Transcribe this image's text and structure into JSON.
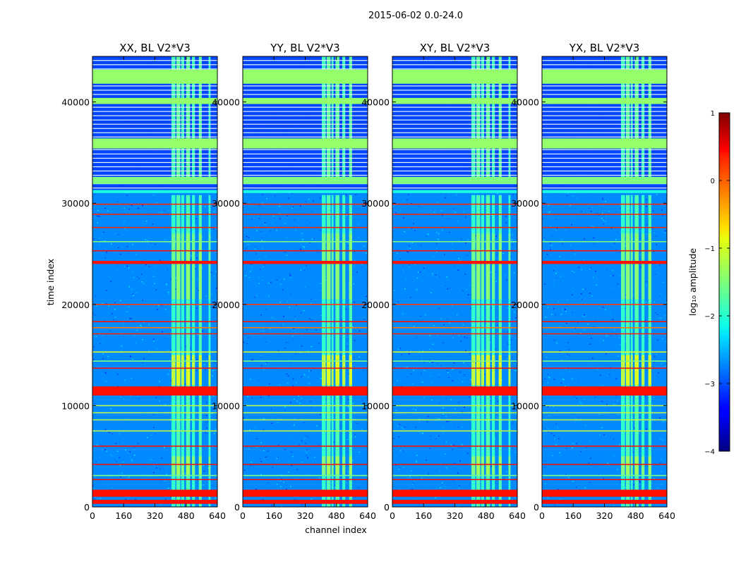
{
  "chart_data": {
    "type": "heatmap",
    "suptitle": "2015-06-02 0.0-24.0",
    "xlabel": "channel index",
    "ylabel": "time index",
    "xlim": [
      0,
      640
    ],
    "ylim": [
      0,
      44500
    ],
    "xticks": [
      0,
      160,
      320,
      480,
      640
    ],
    "yticks": [
      0,
      10000,
      20000,
      30000,
      40000
    ],
    "panels": [
      {
        "title": "XX, BL V2*V3",
        "pol": "XX",
        "band_channels": [
          [
            405,
            425
          ],
          [
            430,
            450
          ],
          [
            455,
            470
          ],
          [
            480,
            500
          ],
          [
            510,
            525
          ],
          [
            545,
            560
          ],
          [
            595,
            605
          ]
        ]
      },
      {
        "title": "YY, BL V2*V3",
        "pol": "YY",
        "band_channels": [
          [
            405,
            425
          ],
          [
            430,
            450
          ],
          [
            455,
            465
          ],
          [
            475,
            495
          ],
          [
            510,
            525
          ],
          [
            545,
            560
          ]
        ]
      },
      {
        "title": "XY, BL V2*V3",
        "pol": "XY",
        "band_channels": [
          [
            405,
            425
          ],
          [
            430,
            450
          ],
          [
            455,
            470
          ],
          [
            480,
            500
          ],
          [
            510,
            525
          ],
          [
            545,
            560
          ],
          [
            595,
            605
          ]
        ]
      },
      {
        "title": "YX, BL V2*V3",
        "pol": "YX",
        "band_channels": [
          [
            405,
            425
          ],
          [
            430,
            450
          ],
          [
            455,
            465
          ],
          [
            475,
            495
          ],
          [
            510,
            525
          ],
          [
            545,
            560
          ]
        ]
      }
    ],
    "colorbar": {
      "label": "log₁₀ amplitude",
      "range": [
        -4,
        1
      ],
      "ticks": [
        1,
        0,
        -1,
        -2,
        -3,
        -4
      ],
      "colormap": "jet"
    },
    "flagged_time_ranges": [
      {
        "t0": 41800,
        "t1": 43200,
        "level": -1.4
      },
      {
        "t0": 39800,
        "t1": 40400,
        "level": -1.4
      },
      {
        "t0": 35400,
        "t1": 36400,
        "level": -1.4
      },
      {
        "t0": 31900,
        "t1": 32600,
        "level": -1.5
      },
      {
        "t0": 31000,
        "t1": 31300,
        "level": -2.0
      },
      {
        "t0": 24000,
        "t1": 24300,
        "level": 0.3
      },
      {
        "t0": 11000,
        "t1": 11900,
        "level": 0.3
      },
      {
        "t0": 1000,
        "t1": 1700,
        "level": 0.3
      },
      {
        "t0": 300,
        "t1": 700,
        "level": 0.3
      }
    ],
    "thin_lines": [
      {
        "t": 20000,
        "level": 0.1
      },
      {
        "t": 18300,
        "level": 0.3
      },
      {
        "t": 17700,
        "level": -0.2
      },
      {
        "t": 17100,
        "level": 0.2
      },
      {
        "t": 15300,
        "level": -1.0
      },
      {
        "t": 14400,
        "level": -1.5
      },
      {
        "t": 13700,
        "level": 0.3
      },
      {
        "t": 10000,
        "level": -1.2
      },
      {
        "t": 9300,
        "level": -1.2
      },
      {
        "t": 8600,
        "level": -1.2
      },
      {
        "t": 7500,
        "level": -1.2
      },
      {
        "t": 6000,
        "level": 0.3
      },
      {
        "t": 4200,
        "level": 0.3
      },
      {
        "t": 3100,
        "level": -1.5
      },
      {
        "t": 2700,
        "level": 0.3
      },
      {
        "t": 28900,
        "level": 0.2
      },
      {
        "t": 27600,
        "level": 0.2
      },
      {
        "t": 26200,
        "level": -1.5
      },
      {
        "t": 25300,
        "level": 0.3
      },
      {
        "t": 29900,
        "level": 0.2
      }
    ],
    "background_level": -2.7
  },
  "colors": {
    "axes": "#000000",
    "background": "#ffffff"
  }
}
